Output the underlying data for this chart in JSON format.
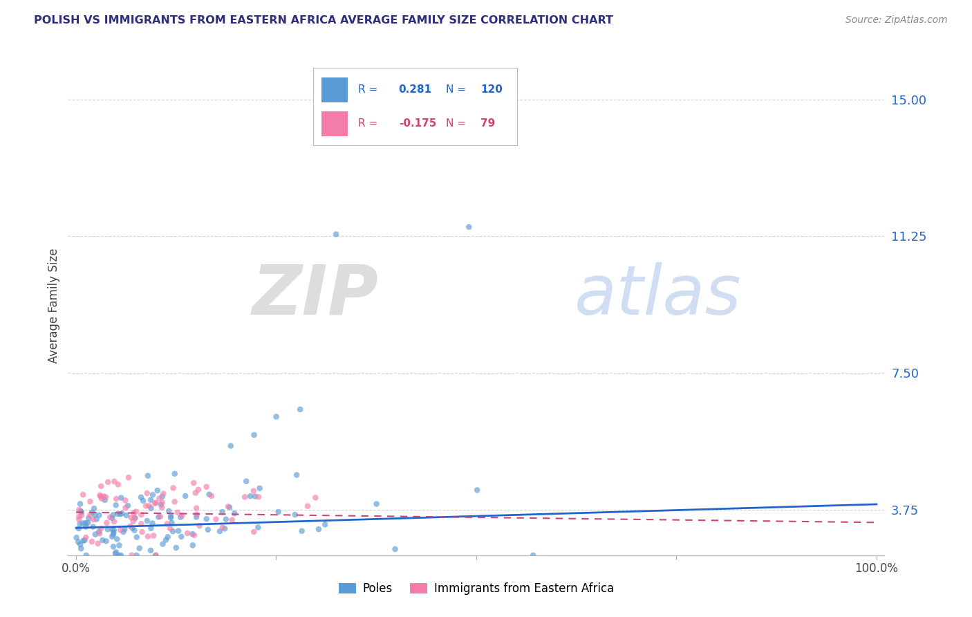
{
  "title": "POLISH VS IMMIGRANTS FROM EASTERN AFRICA AVERAGE FAMILY SIZE CORRELATION CHART",
  "source": "Source: ZipAtlas.com",
  "ylabel": "Average Family Size",
  "xlim": [
    0.0,
    1.0
  ],
  "ylim": [
    2.5,
    16.2
  ],
  "yticks": [
    3.75,
    7.5,
    11.25,
    15.0
  ],
  "title_color": "#2e2e7a",
  "source_color": "#888888",
  "background_color": "#ffffff",
  "grid_color": "#cccccc",
  "watermark_zip": "ZIP",
  "watermark_atlas": "atlas",
  "blue_color": "#5b9bd5",
  "pink_color": "#f47caa",
  "blue_trend_color": "#2266cc",
  "pink_trend_color": "#cc4477",
  "ytick_color": "#2266cc",
  "legend_r1_label": "R =",
  "legend_r1_val": "0.281",
  "legend_n1_label": "N =",
  "legend_n1_val": "120",
  "legend_r2_label": "R =",
  "legend_r2_val": "-0.175",
  "legend_n2_label": "N =",
  "legend_n2_val": "79"
}
